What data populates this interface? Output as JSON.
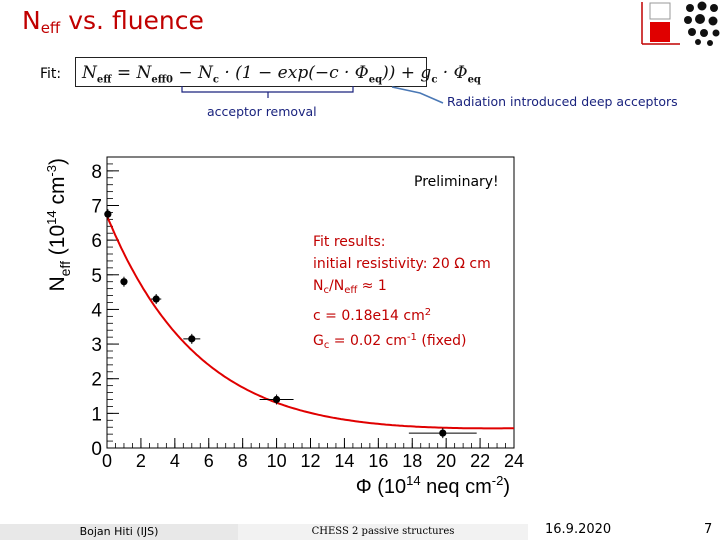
{
  "title": {
    "main": "N",
    "sub": "eff",
    "rest": " vs. fluence"
  },
  "fit_label": "Fit:",
  "formula": {
    "p1": "N",
    "s1": "eff",
    "p2": " = N",
    "s2": "eff0",
    "p3": " − N",
    "s3": "c",
    "p4": " · (1 − exp(−c · Φ",
    "s4": "eq",
    "p5": ")) + g",
    "s5": "c",
    "p6": " · Φ",
    "s6": "eq"
  },
  "annotations": {
    "acceptor_removal": "acceptor removal",
    "deep_acceptors": "Radiation introduced deep acceptors"
  },
  "preliminary": "Preliminary!",
  "fit_results": {
    "heading": "Fit results:",
    "resistivity": "initial resistivity: 20 Ω cm",
    "ratio_a": "N",
    "ratio_a_sub": "c",
    "ratio_b": "/N",
    "ratio_b_sub": "eff",
    "ratio_c": " ≈ 1",
    "c_a": "c = 0.18e14 cm",
    "c_sup": "2",
    "g_a": "G",
    "g_sub": "c",
    "g_b": " = 0.02 cm",
    "g_sup": "-1",
    "g_c": " (fixed)"
  },
  "footer": {
    "author": "Bojan Hiti (IJS)",
    "talk": "CHESS 2 passive structures",
    "date": "16.9.2020",
    "page": "7"
  },
  "colors": {
    "title": "#c00000",
    "fit_curve": "#e00000",
    "annotation": "#1a237e",
    "logo_red": "#e00000"
  },
  "chart_data": {
    "type": "scatter",
    "xlabel": {
      "main": "Φ (10",
      "sup": "14",
      "rest": " neq cm",
      "sup2": "-2",
      "end": ")"
    },
    "ylabel": {
      "main": "N",
      "sub": "eff",
      "rest": " (10",
      "sup": "14",
      "rest2": " cm",
      "sup2": "-3",
      "end": ")"
    },
    "xlim": [
      0,
      24
    ],
    "ylim": [
      0,
      8.4
    ],
    "x_ticks": [
      0,
      2,
      4,
      6,
      8,
      10,
      12,
      14,
      16,
      18,
      20,
      22,
      24
    ],
    "y_ticks": [
      0,
      1,
      2,
      3,
      4,
      5,
      6,
      7,
      8
    ],
    "points": [
      {
        "x": 0.05,
        "y": 6.75,
        "xerr": 0
      },
      {
        "x": 1.0,
        "y": 4.8,
        "xerr": 0.1
      },
      {
        "x": 2.9,
        "y": 4.3,
        "xerr": 0.3
      },
      {
        "x": 5.0,
        "y": 3.15,
        "xerr": 0.5
      },
      {
        "x": 10.0,
        "y": 1.4,
        "xerr": 1.0
      },
      {
        "x": 19.8,
        "y": 0.43,
        "xerr": 2.0
      }
    ],
    "fit": {
      "n0": 6.7,
      "nc": 6.7,
      "c": 0.18,
      "g": 0.02
    }
  }
}
